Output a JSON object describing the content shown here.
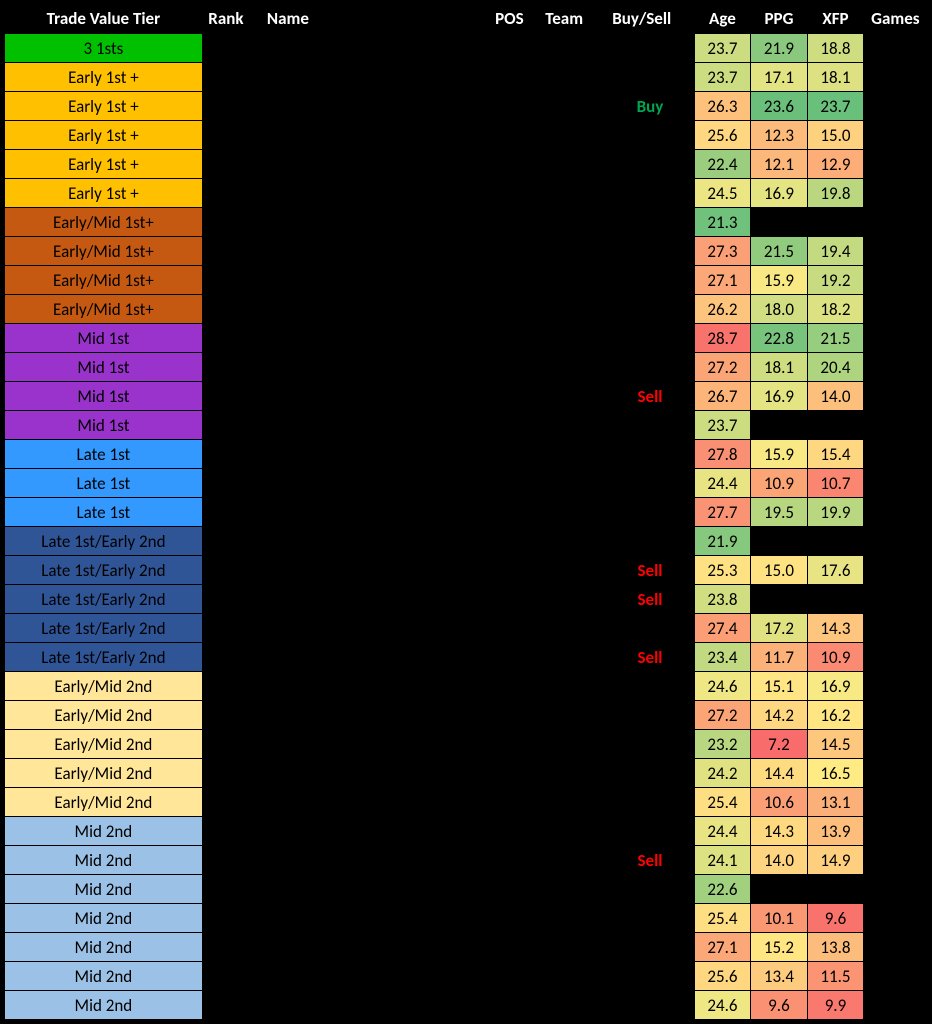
{
  "headers": {
    "tier": "Trade Value Tier",
    "rank": "Rank",
    "name": "Name",
    "pos": "POS",
    "team": "Team",
    "buysell": "Buy/Sell",
    "age": "Age",
    "ppg": "PPG",
    "xfp": "XFP",
    "games": "Games"
  },
  "tier_colors": {
    "3 1sts": "#00c000",
    "Early 1st +": "#ffc000",
    "Early/Mid 1st+": "#c65911",
    "Mid 1st": "#9933cc",
    "Late 1st": "#3399ff",
    "Late 1st/Early 2nd": "#2f5597",
    "Early/Mid 2nd": "#ffe699",
    "Mid 2nd": "#9bc2e6"
  },
  "age_scale": {
    "min": 21.0,
    "max": 29.0,
    "colors": [
      "#63be7b",
      "#ffeb84",
      "#f8696b"
    ]
  },
  "ppg_scale": {
    "min": 7.0,
    "max": 24.0,
    "colors": [
      "#f8696b",
      "#ffeb84",
      "#63be7b"
    ]
  },
  "xfp_scale": {
    "min": 9.0,
    "max": 24.0,
    "colors": [
      "#f8696b",
      "#ffeb84",
      "#63be7b"
    ]
  },
  "rows": [
    {
      "tier": "3 1sts",
      "buysell": "",
      "age": 23.7,
      "ppg": 21.9,
      "xfp": 18.8
    },
    {
      "tier": "Early 1st +",
      "buysell": "",
      "age": 23.7,
      "ppg": 17.1,
      "xfp": 18.1
    },
    {
      "tier": "Early 1st +",
      "buysell": "Buy",
      "age": 26.3,
      "ppg": 23.6,
      "xfp": 23.7
    },
    {
      "tier": "Early 1st +",
      "buysell": "",
      "age": 25.6,
      "ppg": 12.3,
      "xfp": 15.0
    },
    {
      "tier": "Early 1st +",
      "buysell": "",
      "age": 22.4,
      "ppg": 12.1,
      "xfp": 12.9
    },
    {
      "tier": "Early 1st +",
      "buysell": "",
      "age": 24.5,
      "ppg": 16.9,
      "xfp": 19.8
    },
    {
      "tier": "Early/Mid 1st+",
      "buysell": "",
      "age": 21.3,
      "ppg": null,
      "xfp": null
    },
    {
      "tier": "Early/Mid 1st+",
      "buysell": "",
      "age": 27.3,
      "ppg": 21.5,
      "xfp": 19.4
    },
    {
      "tier": "Early/Mid 1st+",
      "buysell": "",
      "age": 27.1,
      "ppg": 15.9,
      "xfp": 19.2
    },
    {
      "tier": "Early/Mid 1st+",
      "buysell": "",
      "age": 26.2,
      "ppg": 18.0,
      "xfp": 18.2
    },
    {
      "tier": "Mid 1st",
      "buysell": "",
      "age": 28.7,
      "ppg": 22.8,
      "xfp": 21.5
    },
    {
      "tier": "Mid 1st",
      "buysell": "",
      "age": 27.2,
      "ppg": 18.1,
      "xfp": 20.4
    },
    {
      "tier": "Mid 1st",
      "buysell": "Sell",
      "age": 26.7,
      "ppg": 16.9,
      "xfp": 14.0
    },
    {
      "tier": "Mid 1st",
      "buysell": "",
      "age": 23.7,
      "ppg": null,
      "xfp": null
    },
    {
      "tier": "Late 1st",
      "buysell": "",
      "age": 27.8,
      "ppg": 15.9,
      "xfp": 15.4
    },
    {
      "tier": "Late 1st",
      "buysell": "",
      "age": 24.4,
      "ppg": 10.9,
      "xfp": 10.7
    },
    {
      "tier": "Late 1st",
      "buysell": "",
      "age": 27.7,
      "ppg": 19.5,
      "xfp": 19.9
    },
    {
      "tier": "Late 1st/Early 2nd",
      "buysell": "",
      "age": 21.9,
      "ppg": null,
      "xfp": null
    },
    {
      "tier": "Late 1st/Early 2nd",
      "buysell": "Sell",
      "age": 25.3,
      "ppg": 15.0,
      "xfp": 17.6
    },
    {
      "tier": "Late 1st/Early 2nd",
      "buysell": "Sell",
      "age": 23.8,
      "ppg": null,
      "xfp": null
    },
    {
      "tier": "Late 1st/Early 2nd",
      "buysell": "",
      "age": 27.4,
      "ppg": 17.2,
      "xfp": 14.3
    },
    {
      "tier": "Late 1st/Early 2nd",
      "buysell": "Sell",
      "age": 23.4,
      "ppg": 11.7,
      "xfp": 10.9
    },
    {
      "tier": "Early/Mid 2nd",
      "buysell": "",
      "age": 24.6,
      "ppg": 15.1,
      "xfp": 16.9
    },
    {
      "tier": "Early/Mid 2nd",
      "buysell": "",
      "age": 27.2,
      "ppg": 14.2,
      "xfp": 16.2
    },
    {
      "tier": "Early/Mid 2nd",
      "buysell": "",
      "age": 23.2,
      "ppg": 7.2,
      "xfp": 14.5
    },
    {
      "tier": "Early/Mid 2nd",
      "buysell": "",
      "age": 24.2,
      "ppg": 14.4,
      "xfp": 16.5
    },
    {
      "tier": "Early/Mid 2nd",
      "buysell": "",
      "age": 25.4,
      "ppg": 10.6,
      "xfp": 13.1
    },
    {
      "tier": "Mid 2nd",
      "buysell": "",
      "age": 24.4,
      "ppg": 14.3,
      "xfp": 13.9
    },
    {
      "tier": "Mid 2nd",
      "buysell": "Sell",
      "age": 24.1,
      "ppg": 14.0,
      "xfp": 14.9
    },
    {
      "tier": "Mid 2nd",
      "buysell": "",
      "age": 22.6,
      "ppg": null,
      "xfp": null
    },
    {
      "tier": "Mid 2nd",
      "buysell": "",
      "age": 25.4,
      "ppg": 10.1,
      "xfp": 9.6
    },
    {
      "tier": "Mid 2nd",
      "buysell": "",
      "age": 27.1,
      "ppg": 15.2,
      "xfp": 13.8
    },
    {
      "tier": "Mid 2nd",
      "buysell": "",
      "age": 25.6,
      "ppg": 13.4,
      "xfp": 11.5
    },
    {
      "tier": "Mid 2nd",
      "buysell": "",
      "age": 24.6,
      "ppg": 9.6,
      "xfp": 9.9
    }
  ]
}
